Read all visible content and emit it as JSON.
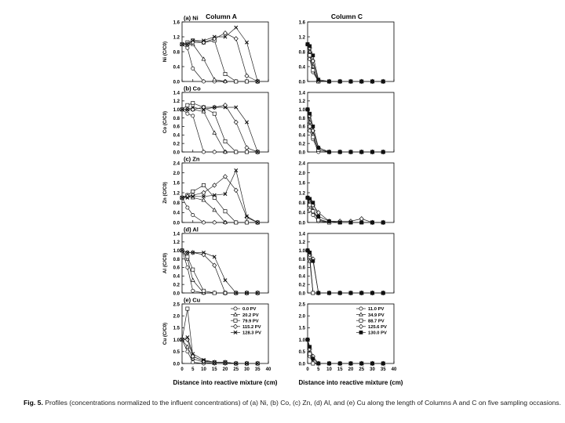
{
  "figure": {
    "column_headers": [
      "Column A",
      "Column C"
    ],
    "xlabel": "Distance into reactive mixture (cm)",
    "x_ticks": [
      0,
      5,
      10,
      15,
      20,
      25,
      30,
      35,
      40
    ],
    "caption_label": "Fig. 5.",
    "caption_text": "Profiles (concentrations normalized to the influent concentrations) of (a) Ni, (b) Co, (c) Zn, (d) Al, and (e) Cu along the length of Columns A and C on five sampling occasions."
  },
  "chart_data": [
    {
      "type": "line",
      "panel_label": "(a) Ni",
      "column": "Column A",
      "ylabel": "Ni (C/C0)",
      "xlim": [
        0,
        40
      ],
      "ylim": [
        0,
        1.6
      ],
      "yticks": [
        "0.0",
        "0.4",
        "0.8",
        "1.2",
        "1.6"
      ],
      "x": [
        0,
        2.5,
        5,
        10,
        15,
        20,
        25,
        30,
        35
      ],
      "series": [
        {
          "name": "0.0 PV",
          "marker": "circle-open",
          "values": [
            1.0,
            0.9,
            0.35,
            0.0,
            0.0,
            0.0,
            0.0,
            0.0,
            0.0
          ]
        },
        {
          "name": "20.2 PV",
          "marker": "triangle-open",
          "values": [
            1.0,
            1.0,
            1.0,
            0.6,
            0.05,
            0.0,
            0.0,
            0.0,
            0.0
          ]
        },
        {
          "name": "79.9 PV",
          "marker": "square-open",
          "values": [
            1.0,
            1.05,
            1.1,
            1.05,
            1.1,
            0.2,
            0.0,
            0.0,
            0.0
          ]
        },
        {
          "name": "115.2 PV",
          "marker": "diamond-open",
          "values": [
            1.0,
            1.0,
            1.05,
            1.05,
            1.15,
            1.3,
            1.15,
            0.15,
            0.0
          ]
        },
        {
          "name": "128.3 PV",
          "marker": "x",
          "values": [
            1.0,
            1.0,
            1.1,
            1.1,
            1.2,
            1.2,
            1.45,
            1.05,
            0.0
          ]
        }
      ]
    },
    {
      "type": "line",
      "panel_label": "",
      "column": "Column C",
      "ylabel": "",
      "xlim": [
        0,
        40
      ],
      "ylim": [
        0,
        1.6
      ],
      "yticks": [
        "0.0",
        "0.4",
        "0.8",
        "1.2",
        "1.6"
      ],
      "x": [
        0,
        1,
        2.5,
        5,
        10,
        15,
        20,
        25,
        30,
        35
      ],
      "series": [
        {
          "name": "11.0 PV",
          "marker": "circle-open",
          "values": [
            1.0,
            0.6,
            0.25,
            0.0,
            0.0,
            0.0,
            0.0,
            0.0,
            0.0,
            0.0
          ]
        },
        {
          "name": "34.9 PV",
          "marker": "triangle-open",
          "values": [
            1.0,
            0.8,
            0.4,
            0.0,
            0.0,
            0.0,
            0.0,
            0.0,
            0.0,
            0.0
          ]
        },
        {
          "name": "88.7 PV",
          "marker": "square-open",
          "values": [
            1.0,
            0.7,
            0.3,
            0.0,
            0.0,
            0.0,
            0.0,
            0.0,
            0.0,
            0.0
          ]
        },
        {
          "name": "125.6 PV",
          "marker": "diamond-open",
          "values": [
            1.0,
            0.9,
            0.55,
            0.02,
            0.0,
            0.0,
            0.0,
            0.0,
            0.0,
            0.0
          ]
        },
        {
          "name": "130.0 PV",
          "marker": "filled-square",
          "values": [
            1.0,
            0.95,
            0.7,
            0.05,
            0.0,
            0.0,
            0.0,
            0.0,
            0.0,
            0.0
          ]
        }
      ]
    },
    {
      "type": "line",
      "panel_label": "(b) Co",
      "column": "Column A",
      "ylabel": "Co (C/C0)",
      "xlim": [
        0,
        40
      ],
      "ylim": [
        0,
        1.4
      ],
      "yticks": [
        "0.0",
        "0.2",
        "0.4",
        "0.6",
        "0.8",
        "1.0",
        "1.2",
        "1.4"
      ],
      "x": [
        0,
        2.5,
        5,
        10,
        15,
        20,
        25,
        30,
        35
      ],
      "series": [
        {
          "name": "0.0 PV",
          "marker": "circle-open",
          "values": [
            1.0,
            0.9,
            0.85,
            0.0,
            0.0,
            0.0,
            0.0,
            0.0,
            0.0
          ]
        },
        {
          "name": "20.2 PV",
          "marker": "triangle-open",
          "values": [
            1.0,
            1.0,
            1.0,
            0.95,
            0.45,
            0.0,
            0.0,
            0.0,
            0.0
          ]
        },
        {
          "name": "79.9 PV",
          "marker": "square-open",
          "values": [
            1.0,
            1.1,
            1.15,
            1.05,
            0.9,
            0.25,
            0.0,
            0.0,
            0.0
          ]
        },
        {
          "name": "115.2 PV",
          "marker": "diamond-open",
          "values": [
            1.0,
            1.0,
            1.0,
            1.05,
            1.05,
            1.1,
            0.7,
            0.1,
            0.0
          ]
        },
        {
          "name": "128.3 PV",
          "marker": "x",
          "values": [
            1.0,
            1.0,
            1.05,
            1.0,
            1.05,
            1.05,
            1.05,
            0.7,
            0.0
          ]
        }
      ]
    },
    {
      "type": "line",
      "panel_label": "",
      "column": "Column C",
      "ylabel": "",
      "xlim": [
        0,
        40
      ],
      "ylim": [
        0,
        1.4
      ],
      "yticks": [
        "0.0",
        "0.2",
        "0.4",
        "0.6",
        "0.8",
        "1.0",
        "1.2",
        "1.4"
      ],
      "x": [
        0,
        1,
        2.5,
        5,
        10,
        15,
        20,
        25,
        30,
        35
      ],
      "series": [
        {
          "name": "11.0 PV",
          "marker": "circle-open",
          "values": [
            1.0,
            0.5,
            0.3,
            0.0,
            0.0,
            0.0,
            0.0,
            0.0,
            0.0,
            0.0
          ]
        },
        {
          "name": "34.9 PV",
          "marker": "triangle-open",
          "values": [
            1.0,
            0.7,
            0.4,
            0.05,
            0.0,
            0.0,
            0.0,
            0.0,
            0.0,
            0.0
          ]
        },
        {
          "name": "88.7 PV",
          "marker": "square-open",
          "values": [
            1.0,
            0.6,
            0.35,
            0.05,
            0.0,
            0.0,
            0.0,
            0.0,
            0.0,
            0.0
          ]
        },
        {
          "name": "125.6 PV",
          "marker": "diamond-open",
          "values": [
            1.0,
            0.85,
            0.5,
            0.1,
            0.0,
            0.0,
            0.0,
            0.0,
            0.0,
            0.0
          ]
        },
        {
          "name": "130.0 PV",
          "marker": "filled-square",
          "values": [
            1.0,
            0.9,
            0.6,
            0.1,
            0.0,
            0.0,
            0.0,
            0.0,
            0.0,
            0.0
          ]
        }
      ]
    },
    {
      "type": "line",
      "panel_label": "(c) Zn",
      "column": "Column A",
      "ylabel": "Zn (C/C0)",
      "xlim": [
        0,
        40
      ],
      "ylim": [
        0,
        2.4
      ],
      "yticks": [
        "0.0",
        "0.4",
        "0.8",
        "1.2",
        "1.6",
        "2.0",
        "2.4"
      ],
      "x": [
        0,
        2.5,
        5,
        10,
        15,
        20,
        25,
        30,
        35
      ],
      "series": [
        {
          "name": "0.0 PV",
          "marker": "circle-open",
          "values": [
            1.0,
            0.6,
            0.3,
            0.0,
            0.0,
            0.0,
            0.0,
            0.0,
            0.0
          ]
        },
        {
          "name": "20.2 PV",
          "marker": "triangle-open",
          "values": [
            1.0,
            1.1,
            1.0,
            0.9,
            0.5,
            0.0,
            0.0,
            0.0,
            0.0
          ]
        },
        {
          "name": "79.9 PV",
          "marker": "square-open",
          "values": [
            1.0,
            1.1,
            1.25,
            1.5,
            1.0,
            0.45,
            0.0,
            0.0,
            0.0
          ]
        },
        {
          "name": "115.2 PV",
          "marker": "diamond-open",
          "values": [
            1.0,
            1.05,
            1.1,
            1.2,
            1.5,
            1.85,
            1.3,
            0.2,
            0.0
          ]
        },
        {
          "name": "128.3 PV",
          "marker": "x",
          "values": [
            1.0,
            1.0,
            1.05,
            1.05,
            1.1,
            1.15,
            2.1,
            0.25,
            0.0
          ]
        }
      ]
    },
    {
      "type": "line",
      "panel_label": "",
      "column": "Column C",
      "ylabel": "",
      "xlim": [
        0,
        40
      ],
      "ylim": [
        0,
        2.4
      ],
      "yticks": [
        "0.0",
        "0.4",
        "0.8",
        "1.2",
        "1.6",
        "2.0",
        "2.4"
      ],
      "x": [
        0,
        1,
        2.5,
        5,
        10,
        15,
        20,
        25,
        30,
        35
      ],
      "series": [
        {
          "name": "11.0 PV",
          "marker": "circle-open",
          "values": [
            1.0,
            0.5,
            0.3,
            0.05,
            0.0,
            0.0,
            0.0,
            0.0,
            0.0,
            0.0
          ]
        },
        {
          "name": "34.9 PV",
          "marker": "triangle-open",
          "values": [
            1.0,
            0.8,
            0.5,
            0.15,
            0.0,
            0.0,
            0.0,
            0.0,
            0.0,
            0.0
          ]
        },
        {
          "name": "88.7 PV",
          "marker": "square-open",
          "values": [
            1.0,
            0.7,
            0.45,
            0.1,
            0.0,
            0.0,
            0.0,
            0.0,
            0.0,
            0.0
          ]
        },
        {
          "name": "125.6 PV",
          "marker": "diamond-open",
          "values": [
            1.0,
            0.9,
            0.7,
            0.4,
            0.05,
            0.05,
            0.05,
            0.15,
            0.0,
            0.0
          ]
        },
        {
          "name": "130.0 PV",
          "marker": "filled-square",
          "values": [
            1.0,
            0.95,
            0.8,
            0.25,
            0.05,
            0.0,
            0.0,
            0.0,
            0.0,
            0.0
          ]
        }
      ]
    },
    {
      "type": "line",
      "panel_label": "(d) Al",
      "column": "Column A",
      "ylabel": "Al (C/C0)",
      "xlim": [
        0,
        40
      ],
      "ylim": [
        0,
        1.4
      ],
      "yticks": [
        "0.0",
        "0.2",
        "0.4",
        "0.6",
        "0.8",
        "1.0",
        "1.2",
        "1.4"
      ],
      "x": [
        0,
        2.5,
        5,
        10,
        15,
        20,
        25,
        30,
        35
      ],
      "series": [
        {
          "name": "0.0 PV",
          "marker": "circle-open",
          "values": [
            1.0,
            0.6,
            0.05,
            0.0,
            0.0,
            0.0,
            0.0,
            0.0,
            0.0
          ]
        },
        {
          "name": "20.2 PV",
          "marker": "triangle-open",
          "values": [
            1.0,
            0.8,
            0.3,
            0.0,
            0.0,
            0.0,
            0.0,
            0.0,
            0.0
          ]
        },
        {
          "name": "79.9 PV",
          "marker": "square-open",
          "values": [
            1.0,
            0.85,
            0.55,
            0.05,
            0.0,
            0.0,
            0.0,
            0.0,
            0.0
          ]
        },
        {
          "name": "115.2 PV",
          "marker": "diamond-open",
          "values": [
            1.0,
            0.95,
            0.95,
            0.9,
            0.65,
            0.0,
            0.0,
            0.0,
            0.0
          ]
        },
        {
          "name": "128.3 PV",
          "marker": "x",
          "values": [
            1.0,
            0.95,
            0.95,
            0.95,
            0.85,
            0.3,
            0.0,
            0.0,
            0.0
          ]
        }
      ]
    },
    {
      "type": "line",
      "panel_label": "",
      "column": "Column C",
      "ylabel": "",
      "xlim": [
        0,
        40
      ],
      "ylim": [
        0,
        1.4
      ],
      "yticks": [
        "0.0",
        "0.2",
        "0.4",
        "0.6",
        "0.8",
        "1.0",
        "1.2",
        "1.4"
      ],
      "x": [
        0,
        1,
        2.5,
        5,
        10,
        15,
        20,
        25,
        30,
        35
      ],
      "series": [
        {
          "name": "11.0 PV",
          "marker": "circle-open",
          "values": [
            1.0,
            0.8,
            0.0,
            0.0,
            0.0,
            0.0,
            0.0,
            0.0,
            0.0,
            0.0
          ]
        },
        {
          "name": "34.9 PV",
          "marker": "triangle-open",
          "values": [
            1.0,
            0.75,
            0.0,
            0.0,
            0.0,
            0.0,
            0.0,
            0.0,
            0.0,
            0.0
          ]
        },
        {
          "name": "88.7 PV",
          "marker": "square-open",
          "values": [
            1.0,
            0.85,
            0.0,
            0.0,
            0.0,
            0.0,
            0.0,
            0.0,
            0.0,
            0.0
          ]
        },
        {
          "name": "125.6 PV",
          "marker": "diamond-open",
          "values": [
            1.0,
            0.9,
            0.8,
            0.0,
            0.0,
            0.0,
            0.0,
            0.0,
            0.0,
            0.0
          ]
        },
        {
          "name": "130.0 PV",
          "marker": "filled-square",
          "values": [
            1.0,
            0.95,
            0.75,
            0.0,
            0.0,
            0.0,
            0.0,
            0.0,
            0.0,
            0.0
          ]
        }
      ]
    },
    {
      "type": "line",
      "panel_label": "(e) Cu",
      "column": "Column A",
      "ylabel": "Cu (C/C0)",
      "xlim": [
        0,
        40
      ],
      "ylim": [
        0,
        2.5
      ],
      "yticks": [
        "0.0",
        "0.5",
        "1.0",
        "1.5",
        "2.0",
        "2.5"
      ],
      "x": [
        0,
        2.5,
        5,
        10,
        15,
        20,
        25,
        30,
        35
      ],
      "legend": "upper-right",
      "series": [
        {
          "name": "0.0 PV",
          "marker": "circle-open",
          "values": [
            1.0,
            0.5,
            0.05,
            0.0,
            0.0,
            0.0,
            0.0,
            0.0,
            0.0
          ]
        },
        {
          "name": "20.2 PV",
          "marker": "triangle-open",
          "values": [
            1.0,
            0.7,
            0.2,
            0.05,
            0.0,
            0.0,
            0.0,
            0.0,
            0.0
          ]
        },
        {
          "name": "79.9 PV",
          "marker": "square-open",
          "values": [
            1.0,
            2.3,
            0.3,
            0.1,
            0.05,
            0.05,
            0.0,
            0.0,
            0.0
          ]
        },
        {
          "name": "115.2 PV",
          "marker": "diamond-open",
          "values": [
            1.0,
            1.0,
            0.3,
            0.1,
            0.05,
            0.05,
            0.0,
            0.0,
            0.0
          ]
        },
        {
          "name": "128.3 PV",
          "marker": "x",
          "values": [
            1.0,
            1.1,
            0.4,
            0.15,
            0.05,
            0.05,
            0.0,
            0.0,
            0.0
          ]
        }
      ]
    },
    {
      "type": "line",
      "panel_label": "",
      "column": "Column C",
      "ylabel": "",
      "xlim": [
        0,
        40
      ],
      "ylim": [
        0,
        2.5
      ],
      "yticks": [
        "0.0",
        "0.5",
        "1.0",
        "1.5",
        "2.0",
        "2.5"
      ],
      "x": [
        0,
        1,
        2.5,
        5,
        10,
        15,
        20,
        25,
        30,
        35
      ],
      "legend": "upper-right",
      "series": [
        {
          "name": "11.0 PV",
          "marker": "circle-open",
          "values": [
            1.0,
            0.3,
            0.0,
            0.0,
            0.0,
            0.0,
            0.0,
            0.0,
            0.0,
            0.0
          ]
        },
        {
          "name": "34.9 PV",
          "marker": "triangle-open",
          "values": [
            1.0,
            0.5,
            0.05,
            0.0,
            0.0,
            0.0,
            0.0,
            0.0,
            0.0,
            0.0
          ]
        },
        {
          "name": "88.7 PV",
          "marker": "square-open",
          "values": [
            1.0,
            0.4,
            0.0,
            0.0,
            0.0,
            0.0,
            0.0,
            0.0,
            0.0,
            0.0
          ]
        },
        {
          "name": "125.6 PV",
          "marker": "diamond-open",
          "values": [
            1.0,
            0.6,
            0.3,
            0.0,
            0.0,
            0.0,
            0.0,
            0.0,
            0.0,
            0.0
          ]
        },
        {
          "name": "130.0 PV",
          "marker": "filled-square",
          "values": [
            1.0,
            0.7,
            0.2,
            0.0,
            0.0,
            0.0,
            0.0,
            0.0,
            0.0,
            0.0
          ]
        }
      ]
    }
  ]
}
